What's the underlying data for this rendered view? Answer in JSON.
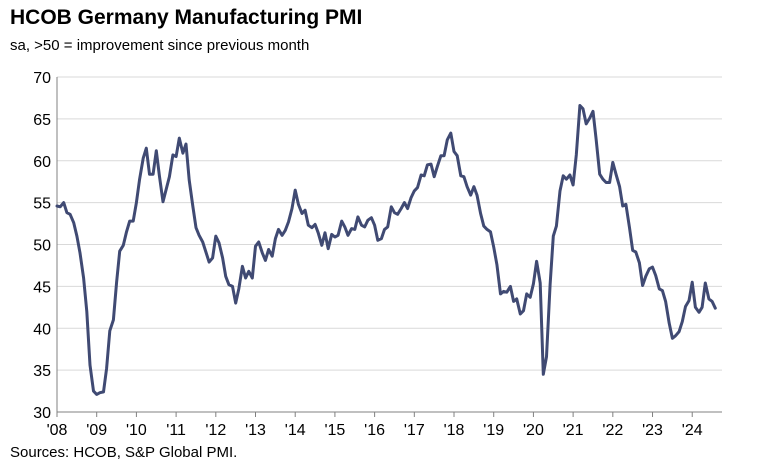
{
  "title": "HCOB Germany Manufacturing PMI",
  "subtitle": "sa, >50 = improvement since previous month",
  "source": "Sources: HCOB, S&P Global PMI.",
  "line_color": "#404a73",
  "chart_data": {
    "type": "line",
    "title": "HCOB Germany Manufacturing PMI",
    "subtitle": "sa, >50 = improvement since previous month",
    "xlabel": "",
    "ylabel": "",
    "ylim": [
      30,
      70
    ],
    "yticks": [
      30,
      35,
      40,
      45,
      50,
      55,
      60,
      65,
      70
    ],
    "xlim": [
      2008.0,
      2024.75
    ],
    "xticks": [
      {
        "label": "'08",
        "x": 2008
      },
      {
        "label": "'09",
        "x": 2009
      },
      {
        "label": "'10",
        "x": 2010
      },
      {
        "label": "'11",
        "x": 2011
      },
      {
        "label": "'12",
        "x": 2012
      },
      {
        "label": "'13",
        "x": 2013
      },
      {
        "label": "'14",
        "x": 2014
      },
      {
        "label": "'15",
        "x": 2015
      },
      {
        "label": "'16",
        "x": 2016
      },
      {
        "label": "'17",
        "x": 2017
      },
      {
        "label": "'18",
        "x": 2018
      },
      {
        "label": "'19",
        "x": 2019
      },
      {
        "label": "'20",
        "x": 2020
      },
      {
        "label": "'21",
        "x": 2021
      },
      {
        "label": "'22",
        "x": 2022
      },
      {
        "label": "'23",
        "x": 2023
      },
      {
        "label": "'24",
        "x": 2024
      }
    ],
    "grid": true,
    "series": [
      {
        "points": [
          [
            2008.0,
            54.6
          ],
          [
            2008.08,
            54.5
          ],
          [
            2008.17,
            55.0
          ],
          [
            2008.25,
            53.8
          ],
          [
            2008.33,
            53.6
          ],
          [
            2008.42,
            52.6
          ],
          [
            2008.5,
            51.0
          ],
          [
            2008.58,
            49.0
          ],
          [
            2008.67,
            46.0
          ],
          [
            2008.75,
            42.0
          ],
          [
            2008.83,
            35.6
          ],
          [
            2008.92,
            32.5
          ],
          [
            2009.0,
            32.1
          ],
          [
            2009.08,
            32.3
          ],
          [
            2009.17,
            32.4
          ],
          [
            2009.25,
            35.2
          ],
          [
            2009.33,
            39.7
          ],
          [
            2009.42,
            41.0
          ],
          [
            2009.5,
            45.5
          ],
          [
            2009.58,
            49.2
          ],
          [
            2009.67,
            49.9
          ],
          [
            2009.75,
            51.5
          ],
          [
            2009.83,
            52.8
          ],
          [
            2009.92,
            52.8
          ],
          [
            2010.0,
            55.0
          ],
          [
            2010.08,
            57.8
          ],
          [
            2010.17,
            60.3
          ],
          [
            2010.25,
            61.5
          ],
          [
            2010.33,
            58.4
          ],
          [
            2010.42,
            58.4
          ],
          [
            2010.5,
            61.2
          ],
          [
            2010.58,
            58.2
          ],
          [
            2010.67,
            55.1
          ],
          [
            2010.75,
            56.6
          ],
          [
            2010.83,
            58.1
          ],
          [
            2010.92,
            60.7
          ],
          [
            2011.0,
            60.5
          ],
          [
            2011.08,
            62.7
          ],
          [
            2011.17,
            60.9
          ],
          [
            2011.25,
            62.0
          ],
          [
            2011.33,
            57.7
          ],
          [
            2011.42,
            54.6
          ],
          [
            2011.5,
            52.0
          ],
          [
            2011.58,
            51.1
          ],
          [
            2011.67,
            50.3
          ],
          [
            2011.75,
            49.1
          ],
          [
            2011.83,
            47.9
          ],
          [
            2011.92,
            48.4
          ],
          [
            2012.0,
            51.0
          ],
          [
            2012.08,
            50.2
          ],
          [
            2012.17,
            48.4
          ],
          [
            2012.25,
            46.2
          ],
          [
            2012.33,
            45.2
          ],
          [
            2012.42,
            45.0
          ],
          [
            2012.5,
            43.0
          ],
          [
            2012.58,
            44.7
          ],
          [
            2012.67,
            47.4
          ],
          [
            2012.75,
            46.0
          ],
          [
            2012.83,
            46.8
          ],
          [
            2012.92,
            46.0
          ],
          [
            2013.0,
            49.8
          ],
          [
            2013.08,
            50.3
          ],
          [
            2013.17,
            49.0
          ],
          [
            2013.25,
            48.1
          ],
          [
            2013.33,
            49.4
          ],
          [
            2013.42,
            48.6
          ],
          [
            2013.5,
            50.7
          ],
          [
            2013.58,
            51.8
          ],
          [
            2013.67,
            51.1
          ],
          [
            2013.75,
            51.7
          ],
          [
            2013.83,
            52.7
          ],
          [
            2013.92,
            54.3
          ],
          [
            2014.0,
            56.5
          ],
          [
            2014.08,
            54.8
          ],
          [
            2014.17,
            53.7
          ],
          [
            2014.25,
            54.1
          ],
          [
            2014.33,
            52.3
          ],
          [
            2014.42,
            52.0
          ],
          [
            2014.5,
            52.4
          ],
          [
            2014.58,
            51.4
          ],
          [
            2014.67,
            49.9
          ],
          [
            2014.75,
            51.4
          ],
          [
            2014.83,
            49.5
          ],
          [
            2014.92,
            51.2
          ],
          [
            2015.0,
            50.9
          ],
          [
            2015.08,
            51.1
          ],
          [
            2015.17,
            52.8
          ],
          [
            2015.25,
            52.1
          ],
          [
            2015.33,
            51.1
          ],
          [
            2015.42,
            51.9
          ],
          [
            2015.5,
            51.8
          ],
          [
            2015.58,
            53.3
          ],
          [
            2015.67,
            52.3
          ],
          [
            2015.75,
            52.1
          ],
          [
            2015.83,
            52.9
          ],
          [
            2015.92,
            53.2
          ],
          [
            2016.0,
            52.3
          ],
          [
            2016.08,
            50.5
          ],
          [
            2016.17,
            50.7
          ],
          [
            2016.25,
            51.8
          ],
          [
            2016.33,
            52.1
          ],
          [
            2016.42,
            54.5
          ],
          [
            2016.5,
            53.8
          ],
          [
            2016.58,
            53.6
          ],
          [
            2016.67,
            54.3
          ],
          [
            2016.75,
            55.0
          ],
          [
            2016.83,
            54.3
          ],
          [
            2016.92,
            55.6
          ],
          [
            2017.0,
            56.4
          ],
          [
            2017.08,
            56.8
          ],
          [
            2017.17,
            58.3
          ],
          [
            2017.25,
            58.2
          ],
          [
            2017.33,
            59.5
          ],
          [
            2017.42,
            59.6
          ],
          [
            2017.5,
            58.1
          ],
          [
            2017.58,
            59.3
          ],
          [
            2017.67,
            60.6
          ],
          [
            2017.75,
            60.6
          ],
          [
            2017.83,
            62.5
          ],
          [
            2017.92,
            63.3
          ],
          [
            2018.0,
            61.1
          ],
          [
            2018.08,
            60.6
          ],
          [
            2018.17,
            58.2
          ],
          [
            2018.25,
            58.1
          ],
          [
            2018.33,
            56.9
          ],
          [
            2018.42,
            55.9
          ],
          [
            2018.5,
            56.9
          ],
          [
            2018.58,
            55.9
          ],
          [
            2018.67,
            53.7
          ],
          [
            2018.75,
            52.2
          ],
          [
            2018.83,
            51.8
          ],
          [
            2018.92,
            51.5
          ],
          [
            2019.0,
            49.7
          ],
          [
            2019.08,
            47.6
          ],
          [
            2019.17,
            44.1
          ],
          [
            2019.25,
            44.4
          ],
          [
            2019.33,
            44.3
          ],
          [
            2019.42,
            45.0
          ],
          [
            2019.5,
            43.2
          ],
          [
            2019.58,
            43.5
          ],
          [
            2019.67,
            41.7
          ],
          [
            2019.75,
            42.1
          ],
          [
            2019.83,
            44.1
          ],
          [
            2019.92,
            43.7
          ],
          [
            2020.0,
            45.3
          ],
          [
            2020.08,
            48.0
          ],
          [
            2020.17,
            45.4
          ],
          [
            2020.25,
            34.5
          ],
          [
            2020.33,
            36.6
          ],
          [
            2020.42,
            45.2
          ],
          [
            2020.5,
            51.0
          ],
          [
            2020.58,
            52.2
          ],
          [
            2020.67,
            56.4
          ],
          [
            2020.75,
            58.2
          ],
          [
            2020.83,
            57.8
          ],
          [
            2020.92,
            58.3
          ],
          [
            2021.0,
            57.1
          ],
          [
            2021.08,
            60.7
          ],
          [
            2021.17,
            66.6
          ],
          [
            2021.25,
            66.2
          ],
          [
            2021.33,
            64.4
          ],
          [
            2021.42,
            65.1
          ],
          [
            2021.5,
            65.9
          ],
          [
            2021.58,
            62.6
          ],
          [
            2021.67,
            58.4
          ],
          [
            2021.75,
            57.8
          ],
          [
            2021.83,
            57.4
          ],
          [
            2021.92,
            57.4
          ],
          [
            2022.0,
            59.8
          ],
          [
            2022.08,
            58.4
          ],
          [
            2022.17,
            56.9
          ],
          [
            2022.25,
            54.6
          ],
          [
            2022.33,
            54.8
          ],
          [
            2022.42,
            52.0
          ],
          [
            2022.5,
            49.3
          ],
          [
            2022.58,
            49.1
          ],
          [
            2022.67,
            47.8
          ],
          [
            2022.75,
            45.1
          ],
          [
            2022.83,
            46.2
          ],
          [
            2022.92,
            47.1
          ],
          [
            2023.0,
            47.3
          ],
          [
            2023.08,
            46.3
          ],
          [
            2023.17,
            44.7
          ],
          [
            2023.25,
            44.5
          ],
          [
            2023.33,
            43.2
          ],
          [
            2023.42,
            40.6
          ],
          [
            2023.5,
            38.8
          ],
          [
            2023.58,
            39.1
          ],
          [
            2023.67,
            39.6
          ],
          [
            2023.75,
            40.8
          ],
          [
            2023.83,
            42.6
          ],
          [
            2023.92,
            43.3
          ],
          [
            2024.0,
            45.5
          ],
          [
            2024.08,
            42.5
          ],
          [
            2024.17,
            41.9
          ],
          [
            2024.25,
            42.5
          ],
          [
            2024.33,
            45.4
          ],
          [
            2024.42,
            43.5
          ],
          [
            2024.5,
            43.2
          ],
          [
            2024.58,
            42.4
          ]
        ]
      }
    ]
  }
}
